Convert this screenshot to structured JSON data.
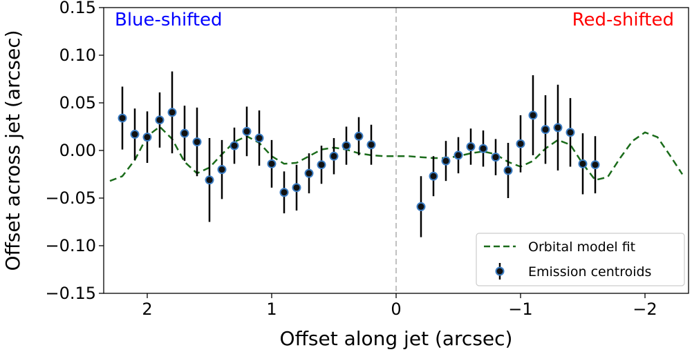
{
  "chart_data": {
    "type": "scatter",
    "xlabel": "Offset along jet (arcsec)",
    "ylabel": "Offset across jet (arcsec)",
    "xlim": [
      2.35,
      -2.35
    ],
    "ylim": [
      -0.15,
      0.15
    ],
    "x_axis_inverted": true,
    "x_ticks": [
      2,
      1,
      0,
      -1,
      -2
    ],
    "x_tick_labels": [
      "2",
      "1",
      "0",
      "−1",
      "−2"
    ],
    "y_ticks": [
      0.15,
      0.1,
      0.05,
      0.0,
      -0.05,
      -0.1,
      -0.15
    ],
    "y_tick_labels": [
      "0.15",
      "0.10",
      "0.05",
      "0.00",
      "−0.05",
      "−0.10",
      "−0.15"
    ],
    "grid": false,
    "legend_position": "lower-right",
    "annotations": [
      {
        "text": "Blue-shifted",
        "position": "top-left",
        "color": "#0000ff"
      },
      {
        "text": "Red-shifted",
        "position": "top-right",
        "color": "#ff0000"
      }
    ],
    "reference_line": {
      "x": 0,
      "style": "dashed",
      "color": "#c0c0c0"
    },
    "series": [
      {
        "name": "Emission centroids",
        "style": "errorbar",
        "marker_fill": "#111111",
        "marker_edge": "#3b7dc4",
        "errorbar_color": "#000000",
        "points": [
          {
            "x": 2.2,
            "y": 0.034,
            "err": 0.033
          },
          {
            "x": 2.1,
            "y": 0.017,
            "err": 0.027
          },
          {
            "x": 2.0,
            "y": 0.014,
            "err": 0.027
          },
          {
            "x": 1.9,
            "y": 0.032,
            "err": 0.029
          },
          {
            "x": 1.8,
            "y": 0.04,
            "err": 0.043
          },
          {
            "x": 1.7,
            "y": 0.018,
            "err": 0.029
          },
          {
            "x": 1.6,
            "y": 0.009,
            "err": 0.036
          },
          {
            "x": 1.5,
            "y": -0.031,
            "err": 0.044
          },
          {
            "x": 1.4,
            "y": -0.02,
            "err": 0.031
          },
          {
            "x": 1.3,
            "y": 0.005,
            "err": 0.019
          },
          {
            "x": 1.2,
            "y": 0.02,
            "err": 0.026
          },
          {
            "x": 1.1,
            "y": 0.013,
            "err": 0.029
          },
          {
            "x": 1.0,
            "y": -0.014,
            "err": 0.025
          },
          {
            "x": 0.9,
            "y": -0.044,
            "err": 0.022
          },
          {
            "x": 0.8,
            "y": -0.039,
            "err": 0.024
          },
          {
            "x": 0.7,
            "y": -0.024,
            "err": 0.021
          },
          {
            "x": 0.6,
            "y": -0.015,
            "err": 0.02
          },
          {
            "x": 0.5,
            "y": -0.006,
            "err": 0.019
          },
          {
            "x": 0.4,
            "y": 0.005,
            "err": 0.02
          },
          {
            "x": 0.3,
            "y": 0.015,
            "err": 0.02
          },
          {
            "x": 0.2,
            "y": 0.006,
            "err": 0.021
          },
          {
            "x": -0.2,
            "y": -0.059,
            "err": 0.032
          },
          {
            "x": -0.3,
            "y": -0.027,
            "err": 0.021
          },
          {
            "x": -0.4,
            "y": -0.011,
            "err": 0.021
          },
          {
            "x": -0.5,
            "y": -0.005,
            "err": 0.019
          },
          {
            "x": -0.6,
            "y": 0.004,
            "err": 0.019
          },
          {
            "x": -0.7,
            "y": 0.002,
            "err": 0.019
          },
          {
            "x": -0.8,
            "y": -0.007,
            "err": 0.019
          },
          {
            "x": -0.9,
            "y": -0.021,
            "err": 0.029
          },
          {
            "x": -1.0,
            "y": 0.007,
            "err": 0.03
          },
          {
            "x": -1.1,
            "y": 0.037,
            "err": 0.042
          },
          {
            "x": -1.2,
            "y": 0.022,
            "err": 0.036
          },
          {
            "x": -1.3,
            "y": 0.024,
            "err": 0.045
          },
          {
            "x": -1.4,
            "y": 0.019,
            "err": 0.036
          },
          {
            "x": -1.5,
            "y": -0.014,
            "err": 0.032
          },
          {
            "x": -1.6,
            "y": -0.015,
            "err": 0.03
          }
        ]
      },
      {
        "name": "Orbital model fit",
        "style": "dashed-line",
        "color": "#1a6b1a",
        "x": [
          2.3,
          2.2,
          2.1,
          2.0,
          1.9,
          1.8,
          1.7,
          1.6,
          1.5,
          1.4,
          1.3,
          1.2,
          1.1,
          1.0,
          0.9,
          0.8,
          0.7,
          0.6,
          0.5,
          0.4,
          0.3,
          0.2,
          0.1,
          0.0,
          -0.1,
          -0.2,
          -0.3,
          -0.4,
          -0.5,
          -0.6,
          -0.7,
          -0.8,
          -0.9,
          -1.0,
          -1.1,
          -1.2,
          -1.3,
          -1.4,
          -1.5,
          -1.6,
          -1.7,
          -1.8,
          -1.9,
          -2.0,
          -2.1,
          -2.2,
          -2.3
        ],
        "y": [
          -0.032,
          -0.027,
          -0.01,
          0.015,
          0.025,
          0.012,
          -0.012,
          -0.024,
          -0.018,
          -0.004,
          0.009,
          0.015,
          0.008,
          -0.006,
          -0.014,
          -0.013,
          -0.006,
          0.001,
          0.003,
          0.001,
          -0.003,
          -0.005,
          -0.006,
          -0.006,
          -0.006,
          -0.007,
          -0.008,
          -0.008,
          -0.006,
          -0.003,
          -0.001,
          -0.004,
          -0.012,
          -0.017,
          -0.011,
          0.002,
          0.011,
          0.006,
          -0.014,
          -0.031,
          -0.028,
          -0.008,
          0.01,
          0.019,
          0.014,
          -0.005,
          -0.025
        ]
      }
    ]
  }
}
